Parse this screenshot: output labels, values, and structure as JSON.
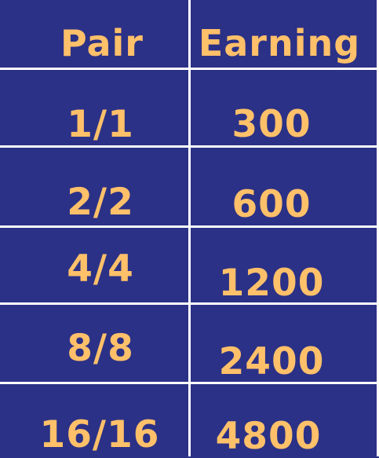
{
  "table": {
    "headers": [
      "Pair",
      "Earning"
    ],
    "rows": [
      {
        "pair": "1/1",
        "earning": "300"
      },
      {
        "pair": "2/2",
        "earning": "600"
      },
      {
        "pair": "4/4",
        "earning": "1200"
      },
      {
        "pair": "8/8",
        "earning": "2400"
      },
      {
        "pair": "16/16",
        "earning": "4800"
      }
    ]
  },
  "colors": {
    "background": "#2b3186",
    "text": "#ffc06a",
    "lines": "#ffffff"
  }
}
